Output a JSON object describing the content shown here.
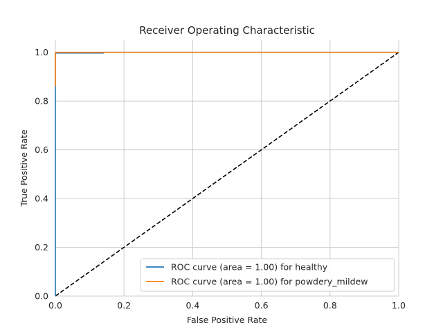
{
  "chart_data": {
    "type": "line",
    "title": "Receiver Operating Characteristic",
    "xlabel": "False Positive Rate",
    "ylabel": "True Positive Rate",
    "xlim": [
      0.0,
      1.0
    ],
    "ylim": [
      0.0,
      1.05
    ],
    "xticks": [
      "0.0",
      "0.2",
      "0.4",
      "0.6",
      "0.8",
      "1.0"
    ],
    "yticks": [
      "0.0",
      "0.2",
      "0.4",
      "0.6",
      "0.8",
      "1.0"
    ],
    "grid": true,
    "legend_position": "lower-right",
    "series": [
      {
        "name": "ROC curve (area = 1.00) for healthy",
        "color": "#1f77b4",
        "x": [
          0.0,
          0.0,
          0.14,
          0.14,
          1.0
        ],
        "y": [
          0.0,
          0.997,
          0.997,
          1.0,
          1.0
        ]
      },
      {
        "name": "ROC curve (area = 1.00) for powdery_mildew",
        "color": "#ff7f0e",
        "x": [
          0.0,
          0.0,
          0.0,
          1.0
        ],
        "y": [
          0.86,
          0.86,
          1.0,
          1.0
        ]
      },
      {
        "name": "",
        "color": "#000000",
        "dashed": true,
        "x": [
          0.0,
          1.0
        ],
        "y": [
          0.0,
          1.0
        ]
      }
    ]
  }
}
